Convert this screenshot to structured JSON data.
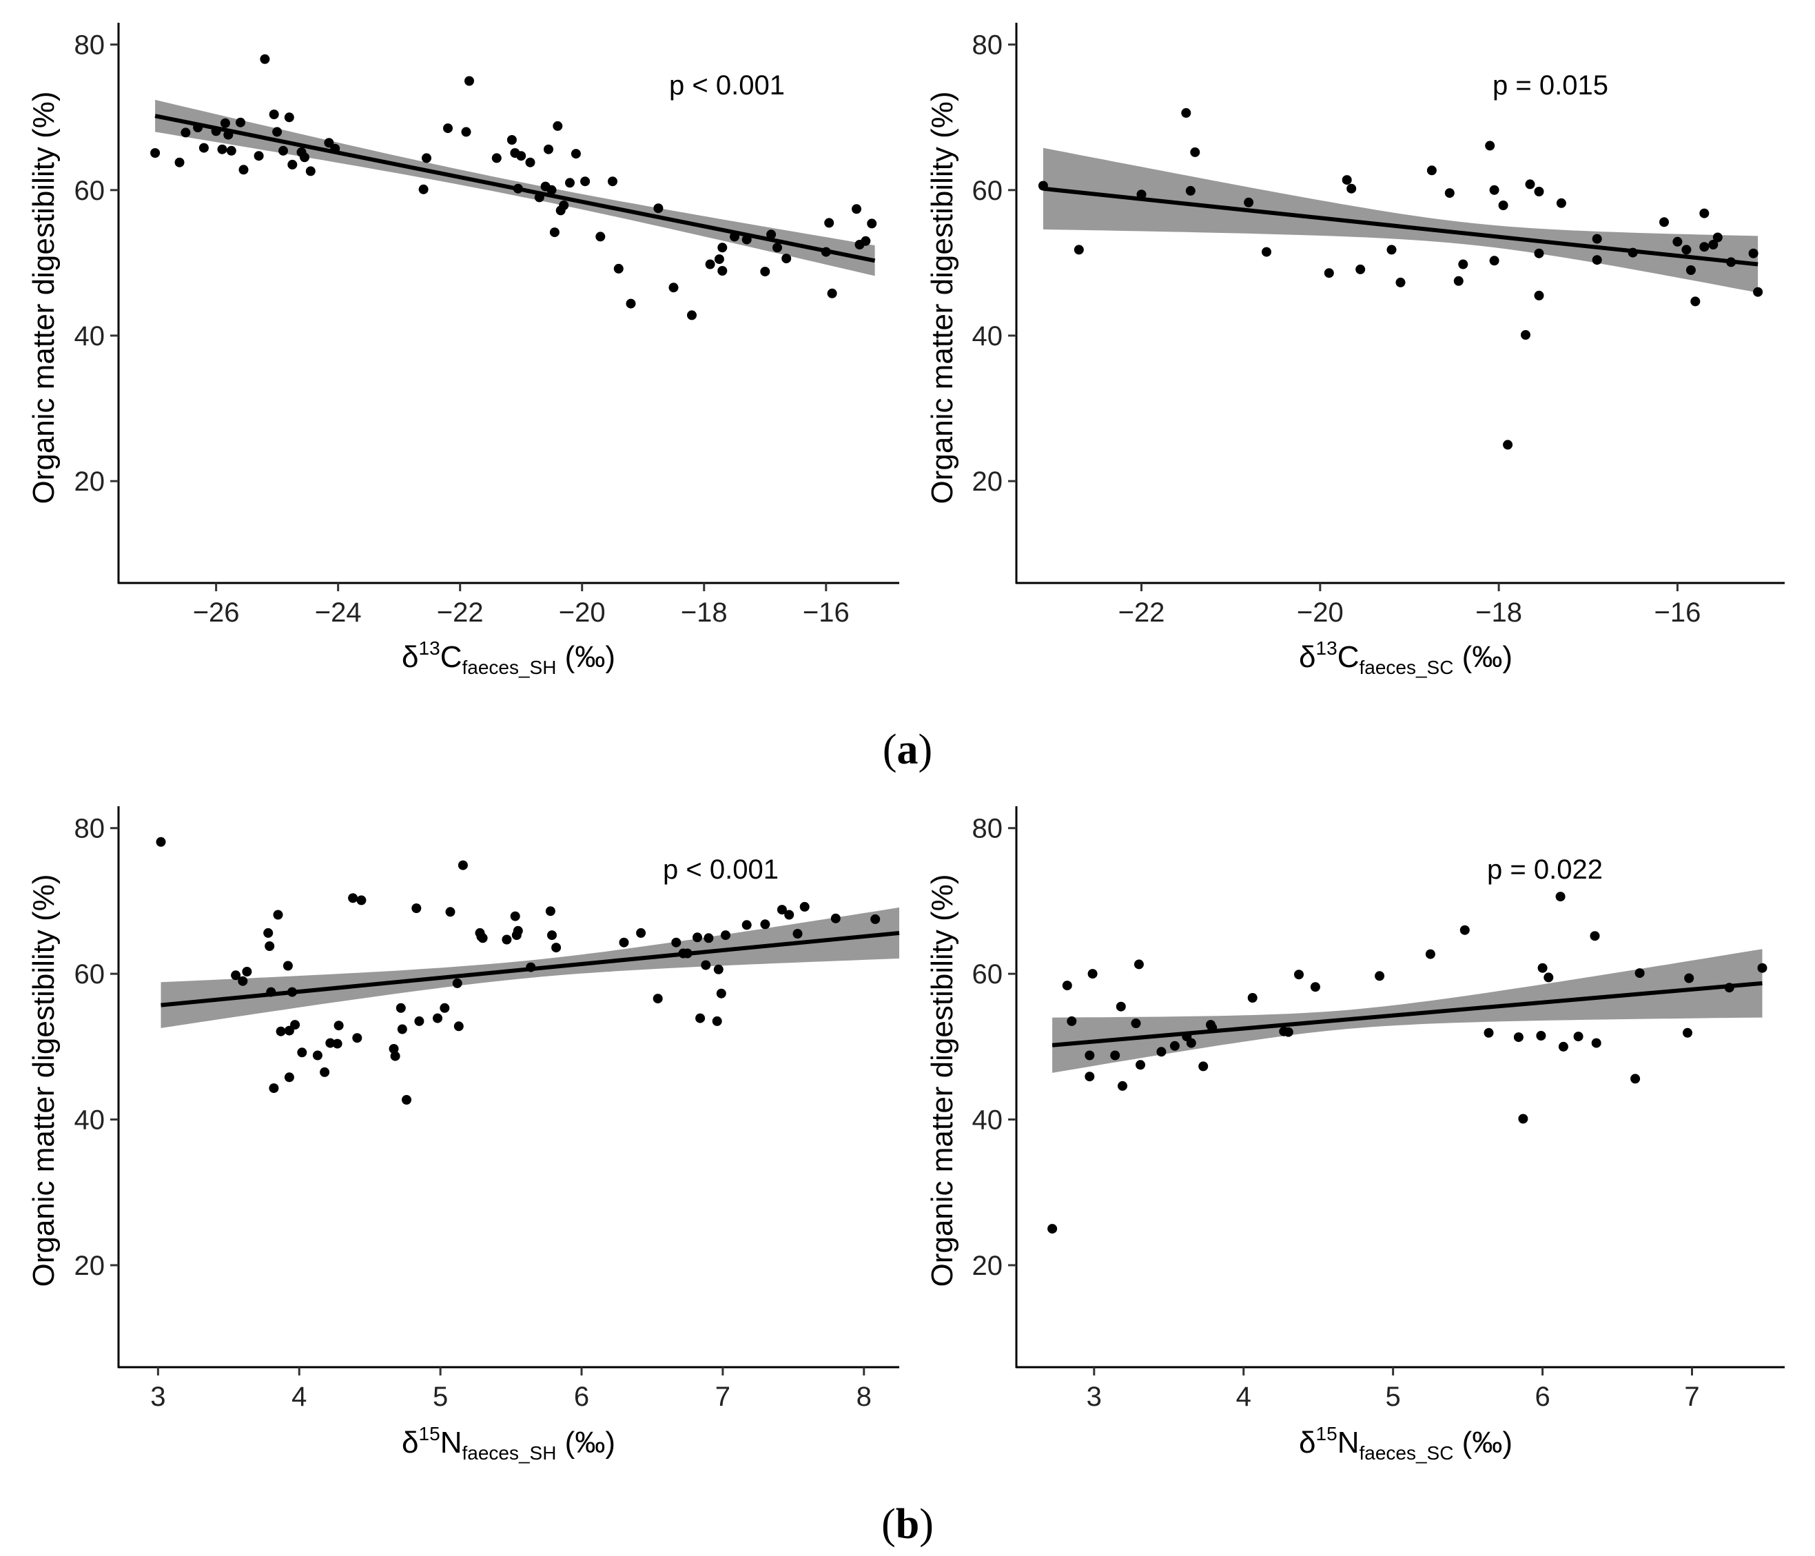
{
  "figure": {
    "labels": [
      {
        "prefix": "(",
        "letter": "a",
        "suffix": ")"
      },
      {
        "prefix": "(",
        "letter": "b",
        "suffix": ")"
      }
    ]
  },
  "chart_data": [
    {
      "type": "scatter",
      "panel": "a-left",
      "title": "",
      "ylabel": "Organic matter digestibility (%)",
      "xlabel": {
        "delta": "δ",
        "sup": "13",
        "element": "C",
        "sub": "faeces_SH",
        "unit": " (‰)"
      },
      "annotation": "p < 0.001",
      "xlim": [
        -27.6,
        -14.8
      ],
      "ylim": [
        6,
        83
      ],
      "xticks": [
        -26,
        -24,
        -22,
        -20,
        -18,
        -16
      ],
      "xtick_labels": [
        "−26",
        "−24",
        "−22",
        "−20",
        "−18",
        "−16"
      ],
      "yticks": [
        20,
        40,
        60,
        80
      ],
      "ytick_labels": [
        "20",
        "40",
        "60",
        "80"
      ],
      "regression": {
        "x0": -27.0,
        "y0": 70.2,
        "x1": -15.2,
        "y1": 50.3,
        "ci_lower": [
          68.0,
          48.2
        ],
        "ci_upper": [
          72.4,
          52.4
        ],
        "ci_center": [
          -21.1,
          60.25
        ],
        "ci_mid_width": 1.0
      },
      "points": [
        [
          -27.0,
          65.1
        ],
        [
          -26.6,
          63.8
        ],
        [
          -26.5,
          67.9
        ],
        [
          -26.3,
          68.6
        ],
        [
          -26.2,
          65.8
        ],
        [
          -26.0,
          68.1
        ],
        [
          -25.9,
          65.6
        ],
        [
          -25.85,
          69.2
        ],
        [
          -25.8,
          67.6
        ],
        [
          -25.75,
          65.4
        ],
        [
          -25.6,
          69.3
        ],
        [
          -25.55,
          62.8
        ],
        [
          -25.3,
          64.7
        ],
        [
          -25.2,
          78.0
        ],
        [
          -25.05,
          70.4
        ],
        [
          -25.0,
          68.0
        ],
        [
          -24.9,
          65.4
        ],
        [
          -24.8,
          70.0
        ],
        [
          -24.75,
          63.5
        ],
        [
          -24.6,
          65.2
        ],
        [
          -24.55,
          64.5
        ],
        [
          -24.45,
          62.6
        ],
        [
          -24.15,
          66.5
        ],
        [
          -24.05,
          65.7
        ],
        [
          -22.6,
          60.1
        ],
        [
          -22.55,
          64.4
        ],
        [
          -22.2,
          68.5
        ],
        [
          -21.9,
          68.0
        ],
        [
          -21.85,
          75.0
        ],
        [
          -21.4,
          64.4
        ],
        [
          -21.15,
          66.9
        ],
        [
          -21.1,
          65.1
        ],
        [
          -21.05,
          60.2
        ],
        [
          -21.0,
          64.7
        ],
        [
          -20.85,
          63.8
        ],
        [
          -20.7,
          59.0
        ],
        [
          -20.6,
          60.5
        ],
        [
          -20.55,
          65.6
        ],
        [
          -20.5,
          60.0
        ],
        [
          -20.45,
          54.2
        ],
        [
          -20.4,
          68.8
        ],
        [
          -20.35,
          57.2
        ],
        [
          -20.3,
          57.9
        ],
        [
          -20.2,
          61.0
        ],
        [
          -20.1,
          65.0
        ],
        [
          -19.95,
          61.2
        ],
        [
          -19.7,
          53.6
        ],
        [
          -19.5,
          61.2
        ],
        [
          -19.4,
          49.2
        ],
        [
          -19.2,
          44.4
        ],
        [
          -18.75,
          57.5
        ],
        [
          -18.5,
          46.6
        ],
        [
          -18.2,
          42.8
        ],
        [
          -17.9,
          49.8
        ],
        [
          -17.75,
          50.5
        ],
        [
          -17.7,
          52.1
        ],
        [
          -17.7,
          48.9
        ],
        [
          -17.5,
          53.6
        ],
        [
          -17.3,
          53.2
        ],
        [
          -17.0,
          48.8
        ],
        [
          -16.9,
          53.9
        ],
        [
          -16.8,
          52.1
        ],
        [
          -16.65,
          50.6
        ],
        [
          -16.0,
          51.5
        ],
        [
          -15.95,
          55.5
        ],
        [
          -15.9,
          45.8
        ],
        [
          -15.5,
          57.4
        ],
        [
          -15.45,
          52.5
        ],
        [
          -15.35,
          53.0
        ],
        [
          -15.25,
          55.4
        ]
      ]
    },
    {
      "type": "scatter",
      "panel": "a-right",
      "title": "",
      "ylabel": "Organic matter digestibility (%)",
      "xlabel": {
        "delta": "δ",
        "sup": "13",
        "element": "C",
        "sub": "faeces_SC",
        "unit": " (‰)"
      },
      "annotation": "p = 0.015",
      "xlim": [
        -23.4,
        -14.8
      ],
      "ylim": [
        6,
        83
      ],
      "xticks": [
        -22,
        -20,
        -18,
        -16
      ],
      "xtick_labels": [
        "−22",
        "−20",
        "−18",
        "−16"
      ],
      "yticks": [
        20,
        40,
        60,
        80
      ],
      "ytick_labels": [
        "20",
        "40",
        "60",
        "80"
      ],
      "regression": {
        "x0": -23.1,
        "y0": 60.2,
        "x1": -15.1,
        "y1": 49.8,
        "ci_lower": [
          54.6,
          45.9
        ],
        "ci_upper": [
          65.8,
          53.7
        ],
        "ci_center": [
          -18.3,
          53.9
        ],
        "ci_mid_width": 1.5
      },
      "points": [
        [
          -23.1,
          60.6
        ],
        [
          -22.7,
          51.8
        ],
        [
          -22.0,
          59.4
        ],
        [
          -21.5,
          70.6
        ],
        [
          -21.45,
          59.9
        ],
        [
          -21.4,
          65.2
        ],
        [
          -20.8,
          58.3
        ],
        [
          -20.6,
          51.5
        ],
        [
          -19.9,
          48.6
        ],
        [
          -19.7,
          61.4
        ],
        [
          -19.65,
          60.2
        ],
        [
          -19.55,
          49.1
        ],
        [
          -19.2,
          51.8
        ],
        [
          -19.1,
          47.3
        ],
        [
          -18.75,
          62.7
        ],
        [
          -18.55,
          59.6
        ],
        [
          -18.45,
          47.5
        ],
        [
          -18.4,
          49.8
        ],
        [
          -18.1,
          66.1
        ],
        [
          -18.05,
          60.0
        ],
        [
          -18.05,
          50.3
        ],
        [
          -17.95,
          57.9
        ],
        [
          -17.9,
          25.0
        ],
        [
          -17.7,
          40.1
        ],
        [
          -17.65,
          60.8
        ],
        [
          -17.55,
          59.8
        ],
        [
          -17.55,
          51.3
        ],
        [
          -17.55,
          45.5
        ],
        [
          -17.3,
          58.2
        ],
        [
          -16.9,
          53.3
        ],
        [
          -16.9,
          50.4
        ],
        [
          -16.5,
          51.4
        ],
        [
          -16.15,
          55.6
        ],
        [
          -16.0,
          52.9
        ],
        [
          -15.9,
          51.8
        ],
        [
          -15.85,
          49.0
        ],
        [
          -15.8,
          44.7
        ],
        [
          -15.7,
          56.8
        ],
        [
          -15.7,
          52.2
        ],
        [
          -15.6,
          52.5
        ],
        [
          -15.55,
          53.5
        ],
        [
          -15.4,
          50.1
        ],
        [
          -15.15,
          51.3
        ],
        [
          -15.1,
          46.0
        ]
      ]
    },
    {
      "type": "scatter",
      "panel": "b-left",
      "title": "",
      "ylabel": "Organic matter digestibility (%)",
      "xlabel": {
        "delta": "δ",
        "sup": "15",
        "element": "N",
        "sub": "faeces_SH",
        "unit": " (‰)"
      },
      "annotation": "p < 0.001",
      "xlim": [
        2.72,
        8.25
      ],
      "ylim": [
        6,
        83
      ],
      "xticks": [
        3,
        4,
        5,
        6,
        7,
        8
      ],
      "xtick_labels": [
        "3",
        "4",
        "5",
        "6",
        "7",
        "8"
      ],
      "yticks": [
        20,
        40,
        60,
        80
      ],
      "ytick_labels": [
        "20",
        "40",
        "60",
        "80"
      ],
      "regression": {
        "x0": 3.02,
        "y0": 55.7,
        "x1": 8.25,
        "y1": 65.6,
        "ci_lower": [
          52.5,
          62.1
        ],
        "ci_upper": [
          58.8,
          69.1
        ],
        "ci_center": [
          5.6,
          60.6
        ],
        "ci_mid_width": 1.2
      },
      "points": [
        [
          3.02,
          78.1
        ],
        [
          3.55,
          59.8
        ],
        [
          3.6,
          59.0
        ],
        [
          3.63,
          60.3
        ],
        [
          3.78,
          65.6
        ],
        [
          3.79,
          63.8
        ],
        [
          3.8,
          57.5
        ],
        [
          3.82,
          44.3
        ],
        [
          3.85,
          68.1
        ],
        [
          3.87,
          52.1
        ],
        [
          3.92,
          61.1
        ],
        [
          3.93,
          52.2
        ],
        [
          3.93,
          45.8
        ],
        [
          3.95,
          57.5
        ],
        [
          3.97,
          53.0
        ],
        [
          4.02,
          49.2
        ],
        [
          4.13,
          48.8
        ],
        [
          4.18,
          46.5
        ],
        [
          4.22,
          50.5
        ],
        [
          4.27,
          50.4
        ],
        [
          4.28,
          52.9
        ],
        [
          4.38,
          70.4
        ],
        [
          4.41,
          51.2
        ],
        [
          4.44,
          70.1
        ],
        [
          4.67,
          49.7
        ],
        [
          4.68,
          48.7
        ],
        [
          4.72,
          55.3
        ],
        [
          4.73,
          52.4
        ],
        [
          4.76,
          42.7
        ],
        [
          4.83,
          69.0
        ],
        [
          4.85,
          53.5
        ],
        [
          4.98,
          53.9
        ],
        [
          5.03,
          55.3
        ],
        [
          5.07,
          68.5
        ],
        [
          5.12,
          58.7
        ],
        [
          5.13,
          52.8
        ],
        [
          5.16,
          74.9
        ],
        [
          5.28,
          65.6
        ],
        [
          5.29,
          65.1
        ],
        [
          5.3,
          64.9
        ],
        [
          5.47,
          64.7
        ],
        [
          5.53,
          67.9
        ],
        [
          5.54,
          65.3
        ],
        [
          5.55,
          65.9
        ],
        [
          5.64,
          60.9
        ],
        [
          5.79,
          65.3
        ],
        [
          5.78,
          68.6
        ],
        [
          5.82,
          63.6
        ],
        [
          6.3,
          64.3
        ],
        [
          6.42,
          65.6
        ],
        [
          6.54,
          56.6
        ],
        [
          6.67,
          64.3
        ],
        [
          6.72,
          62.8
        ],
        [
          6.75,
          62.8
        ],
        [
          6.82,
          65.0
        ],
        [
          6.84,
          53.9
        ],
        [
          6.88,
          61.2
        ],
        [
          6.9,
          64.9
        ],
        [
          6.96,
          53.5
        ],
        [
          6.97,
          60.6
        ],
        [
          6.99,
          57.3
        ],
        [
          7.02,
          65.3
        ],
        [
          7.17,
          66.7
        ],
        [
          7.3,
          66.8
        ],
        [
          7.42,
          68.8
        ],
        [
          7.47,
          68.1
        ],
        [
          7.53,
          65.5
        ],
        [
          7.58,
          69.2
        ],
        [
          7.8,
          67.6
        ],
        [
          8.08,
          67.5
        ]
      ]
    },
    {
      "type": "scatter",
      "panel": "b-right",
      "title": "",
      "ylabel": "Organic matter digestibility (%)",
      "xlabel": {
        "delta": "δ",
        "sup": "15",
        "element": "N",
        "sub": "faeces_SC",
        "unit": " (‰)"
      },
      "annotation": "p = 0.022",
      "xlim": [
        2.48,
        7.62
      ],
      "ylim": [
        6,
        83
      ],
      "xticks": [
        3,
        4,
        5,
        6,
        7
      ],
      "xtick_labels": [
        "3",
        "4",
        "5",
        "6",
        "7"
      ],
      "yticks": [
        20,
        40,
        60,
        80
      ],
      "ytick_labels": [
        "20",
        "40",
        "60",
        "80"
      ],
      "regression": {
        "x0": 2.72,
        "y0": 50.2,
        "x1": 7.47,
        "y1": 58.7,
        "ci_lower": [
          46.4,
          54.0
        ],
        "ci_upper": [
          54.0,
          63.4
        ],
        "ci_center": [
          4.7,
          53.7
        ],
        "ci_mid_width": 1.3
      },
      "points": [
        [
          2.72,
          25.0
        ],
        [
          2.82,
          58.4
        ],
        [
          2.85,
          53.5
        ],
        [
          2.97,
          48.8
        ],
        [
          2.97,
          45.9
        ],
        [
          2.99,
          60.0
        ],
        [
          3.14,
          48.8
        ],
        [
          3.18,
          55.5
        ],
        [
          3.19,
          44.6
        ],
        [
          3.28,
          53.2
        ],
        [
          3.3,
          61.3
        ],
        [
          3.31,
          47.5
        ],
        [
          3.45,
          49.3
        ],
        [
          3.54,
          50.1
        ],
        [
          3.62,
          51.4
        ],
        [
          3.65,
          50.5
        ],
        [
          3.73,
          47.3
        ],
        [
          3.78,
          53.0
        ],
        [
          3.79,
          52.6
        ],
        [
          4.06,
          56.7
        ],
        [
          4.27,
          52.1
        ],
        [
          4.3,
          52.0
        ],
        [
          4.37,
          59.9
        ],
        [
          4.48,
          58.2
        ],
        [
          4.91,
          59.7
        ],
        [
          5.25,
          62.7
        ],
        [
          5.48,
          66.0
        ],
        [
          5.64,
          51.9
        ],
        [
          5.84,
          51.3
        ],
        [
          5.87,
          40.1
        ],
        [
          5.99,
          51.5
        ],
        [
          6.0,
          60.8
        ],
        [
          6.04,
          59.5
        ],
        [
          6.12,
          70.6
        ],
        [
          6.14,
          50.0
        ],
        [
          6.24,
          51.4
        ],
        [
          6.35,
          65.2
        ],
        [
          6.36,
          50.5
        ],
        [
          6.62,
          45.6
        ],
        [
          6.65,
          60.1
        ],
        [
          6.97,
          51.9
        ],
        [
          6.98,
          59.4
        ],
        [
          7.25,
          58.1
        ],
        [
          7.47,
          60.8
        ]
      ]
    }
  ]
}
